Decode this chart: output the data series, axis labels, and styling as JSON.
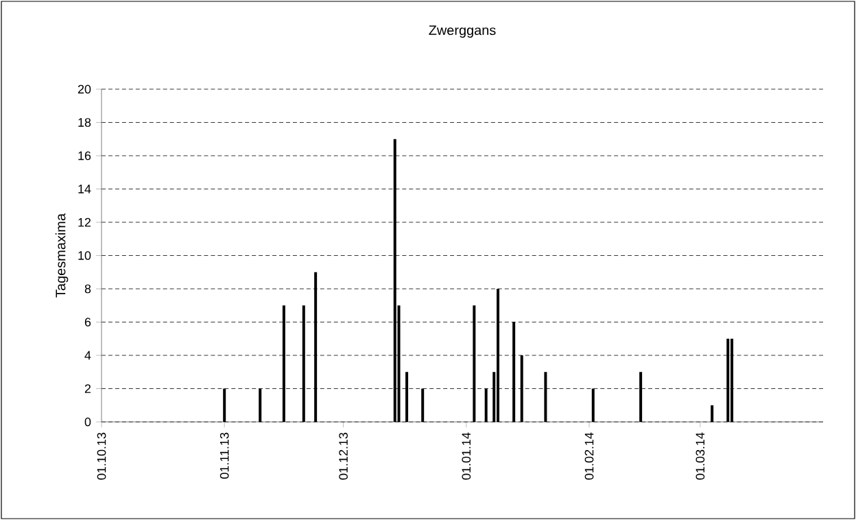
{
  "chart_data": {
    "type": "bar",
    "title": "Zwerggans",
    "ylabel": "Tagesmaxima",
    "x": [
      "2013-11-01",
      "2013-11-10",
      "2013-11-16",
      "2013-11-21",
      "2013-11-24",
      "2013-12-14",
      "2013-12-15",
      "2013-12-17",
      "2013-12-21",
      "2014-01-03",
      "2014-01-06",
      "2014-01-08",
      "2014-01-09",
      "2014-01-13",
      "2014-01-15",
      "2014-01-21",
      "2014-02-02",
      "2014-02-14",
      "2014-03-04",
      "2014-03-08",
      "2014-03-09"
    ],
    "values": [
      2,
      2,
      7,
      7,
      9,
      17,
      7,
      3,
      2,
      7,
      2,
      3,
      8,
      6,
      4,
      3,
      2,
      3,
      1,
      5,
      5
    ],
    "color": "#000000",
    "xlim": [
      "2013-10-01",
      "2014-04-01"
    ],
    "xticks": [
      {
        "value": "2013-10-01",
        "label": "01.10.13"
      },
      {
        "value": "2013-11-01",
        "label": "01.11.13"
      },
      {
        "value": "2013-12-01",
        "label": "01.12.13"
      },
      {
        "value": "2014-01-01",
        "label": "01.01.14"
      },
      {
        "value": "2014-02-01",
        "label": "01.02.14"
      },
      {
        "value": "2014-03-01",
        "label": "01.03.14"
      }
    ],
    "ylim": [
      0,
      20
    ],
    "yticks": [
      0,
      2,
      4,
      6,
      8,
      10,
      12,
      14,
      16,
      18,
      20
    ],
    "grid": "y"
  }
}
